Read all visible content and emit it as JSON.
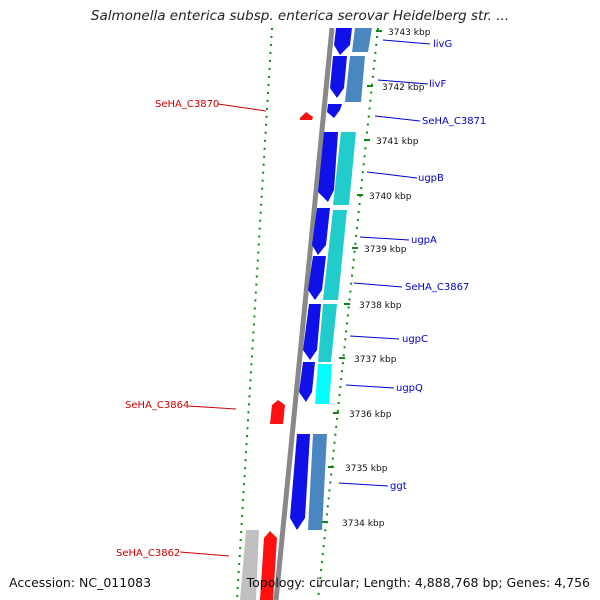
{
  "title": "Salmonella enterica subsp. enterica serovar Heidelberg str. ...",
  "footer": {
    "accession": "Accession: NC_011083",
    "summary": "Topology: circular; Length: 4,888,768 bp; Genes: 4,756"
  },
  "colors": {
    "forward_gene": "#1010e8",
    "reverse_gene": "#ff1010",
    "cds_steel": "#4a86c0",
    "cds_cyan": "#22cccc",
    "cds_cyan_bright": "#00ffff",
    "backbone": "#888888",
    "gc_dots": "#118811",
    "tick_blue_label": "#0000cc",
    "tick_red_label": "#cc0000"
  },
  "scale_labels": [
    "3743 kbp",
    "3742 kbp",
    "3741 kbp",
    "3740 kbp",
    "3739 kbp",
    "3738 kbp",
    "3737 kbp",
    "3736 kbp",
    "3735 kbp",
    "3734 kbp"
  ],
  "gene_labels_right": [
    "livG",
    "livF",
    "SeHA_C3871",
    "ugpB",
    "ugpA",
    "SeHA_C3867",
    "ugpC",
    "ugpQ",
    "ggt"
  ],
  "gene_labels_left": [
    "SeHA_C3870",
    "SeHA_C3864",
    "SeHA_C3862"
  ]
}
